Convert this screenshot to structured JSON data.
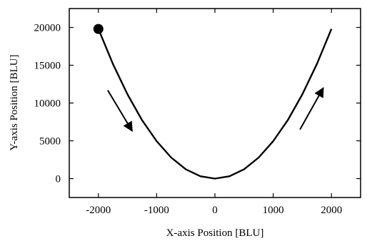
{
  "chart_data": {
    "type": "line",
    "title": "",
    "xlabel": "X-axis Position [BLU]",
    "ylabel": "Y-axis Position [BLU]",
    "xlim": [
      -2500,
      2500
    ],
    "ylim": [
      -2500,
      22500
    ],
    "x_ticks": [
      -2000,
      -1000,
      0,
      1000,
      2000
    ],
    "y_ticks": [
      0,
      5000,
      10000,
      15000,
      20000
    ],
    "grid": false,
    "legend": "none",
    "series": [
      {
        "x": [
          -2000,
          -1750,
          -1500,
          -1250,
          -1000,
          -750,
          -500,
          -250,
          0,
          250,
          500,
          750,
          1000,
          1250,
          1500,
          1750,
          2000
        ],
        "y": [
          19800,
          15160,
          11140,
          7730,
          4950,
          2780,
          1240,
          310,
          0,
          310,
          1240,
          2780,
          4950,
          7730,
          11140,
          15160,
          19800
        ],
        "color": "#000000"
      }
    ],
    "start_marker": {
      "x": -2000,
      "y": 19800
    },
    "direction_arrows": [
      {
        "from": [
          -1840,
          11700
        ],
        "to": [
          -1420,
          6300
        ]
      },
      {
        "from": [
          1460,
          6500
        ],
        "to": [
          1860,
          12000
        ]
      }
    ]
  }
}
